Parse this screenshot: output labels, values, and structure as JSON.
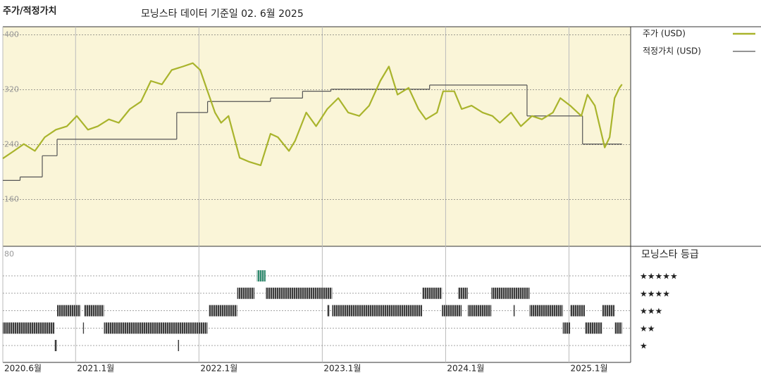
{
  "chart_data": {
    "type": "line",
    "title": "주가/적정가치",
    "subtitle": "모닝스타 데이터 기준일 02. 6월 2025",
    "xlim": [
      2020.41,
      2025.5
    ],
    "xticks": [
      {
        "value": 2020.41,
        "label": "2020.6월"
      },
      {
        "value": 2021,
        "label": "2021.1월"
      },
      {
        "value": 2022,
        "label": "2022.1월"
      },
      {
        "value": 2023,
        "label": "2023.1월"
      },
      {
        "value": 2024,
        "label": "2024.1월"
      },
      {
        "value": 2025,
        "label": "2025.1월"
      }
    ],
    "ylim": [
      92,
      412
    ],
    "yticks": [
      80,
      160,
      240,
      320,
      400
    ],
    "grid": true,
    "x": [
      2020.41,
      2020.5,
      2020.58,
      2020.67,
      2020.75,
      2020.84,
      2020.93,
      2021.01,
      2021.1,
      2021.18,
      2021.27,
      2021.35,
      2021.44,
      2021.53,
      2021.61,
      2021.7,
      2021.78,
      2021.87,
      2021.95,
      2022.01,
      2022.07,
      2022.13,
      2022.18,
      2022.24,
      2022.33,
      2022.41,
      2022.5,
      2022.58,
      2022.64,
      2022.73,
      2022.78,
      2022.87,
      2022.95,
      2023.04,
      2023.13,
      2023.21,
      2023.3,
      2023.38,
      2023.47,
      2023.54,
      2023.61,
      2023.7,
      2023.78,
      2023.84,
      2023.93,
      2023.98,
      2024.07,
      2024.13,
      2024.21,
      2024.3,
      2024.38,
      2024.44,
      2024.53,
      2024.61,
      2024.7,
      2024.78,
      2024.87,
      2024.93,
      2025.01,
      2025.1,
      2025.15,
      2025.21,
      2025.29,
      2025.33,
      2025.37,
      2025.41,
      2025.43
    ],
    "series": [
      {
        "name": "주가 (USD)",
        "color": "#a9b42c",
        "values": [
          220,
          231,
          241,
          231,
          251,
          262,
          267,
          282,
          262,
          267,
          277,
          272,
          292,
          303,
          333,
          328,
          349,
          354,
          359,
          349,
          318,
          287,
          272,
          282,
          221,
          215,
          210,
          256,
          251,
          231,
          246,
          287,
          267,
          292,
          308,
          287,
          282,
          297,
          333,
          354,
          313,
          323,
          292,
          277,
          287,
          318,
          318,
          292,
          297,
          287,
          282,
          272,
          287,
          267,
          282,
          277,
          287,
          308,
          297,
          282,
          313,
          297,
          236,
          251,
          308,
          323,
          328
        ]
      },
      {
        "name": "적정가치 (USD)",
        "color": "#555555",
        "step": true,
        "x": [
          2020.41,
          2020.55,
          2020.73,
          2020.85,
          2021.82,
          2022.07,
          2022.58,
          2022.84,
          2023.07,
          2023.87,
          2024.66,
          2025.11
        ],
        "values": [
          188,
          193,
          224,
          248,
          287,
          303,
          308,
          318,
          321,
          327,
          282,
          241
        ]
      }
    ],
    "rating_title": "모닝스타 등급",
    "rating_labels": [
      "★",
      "★★",
      "★★★",
      "★★★★",
      "★★★★★"
    ],
    "rating_colors": [
      "#3c3c3c",
      "#3c3c3c",
      "#3c3c3c",
      "#3c3c3c",
      "#2e8b6e"
    ],
    "ratings": [
      {
        "stars": 2,
        "start": 2020.41,
        "end": 2020.83
      },
      {
        "stars": 1,
        "start": 2020.83,
        "end": 2020.85
      },
      {
        "stars": 3,
        "start": 2020.85,
        "end": 2021.04
      },
      {
        "stars": 2,
        "start": 2021.06,
        "end": 2021.07
      },
      {
        "stars": 3,
        "start": 2021.07,
        "end": 2021.23
      },
      {
        "stars": 2,
        "start": 2021.23,
        "end": 2022.07
      },
      {
        "stars": 1,
        "start": 2021.83,
        "end": 2021.84
      },
      {
        "stars": 3,
        "start": 2022.08,
        "end": 2022.31
      },
      {
        "stars": 4,
        "start": 2022.31,
        "end": 2022.45
      },
      {
        "stars": 5,
        "start": 2022.47,
        "end": 2022.54
      },
      {
        "stars": 4,
        "start": 2022.54,
        "end": 2023.08
      },
      {
        "stars": 3,
        "start": 2023.04,
        "end": 2023.06
      },
      {
        "stars": 3,
        "start": 2023.08,
        "end": 2023.81
      },
      {
        "stars": 4,
        "start": 2023.81,
        "end": 2023.97
      },
      {
        "stars": 3,
        "start": 2023.97,
        "end": 2024.13
      },
      {
        "stars": 4,
        "start": 2024.1,
        "end": 2024.18
      },
      {
        "stars": 3,
        "start": 2024.18,
        "end": 2024.37
      },
      {
        "stars": 4,
        "start": 2024.37,
        "end": 2024.68
      },
      {
        "stars": 3,
        "start": 2024.55,
        "end": 2024.56
      },
      {
        "stars": 3,
        "start": 2024.68,
        "end": 2024.95
      },
      {
        "stars": 2,
        "start": 2024.95,
        "end": 2025.01
      },
      {
        "stars": 3,
        "start": 2025.01,
        "end": 2025.13
      },
      {
        "stars": 2,
        "start": 2025.13,
        "end": 2025.27
      },
      {
        "stars": 3,
        "start": 2025.27,
        "end": 2025.37
      },
      {
        "stars": 2,
        "start": 2025.37,
        "end": 2025.43
      }
    ]
  }
}
